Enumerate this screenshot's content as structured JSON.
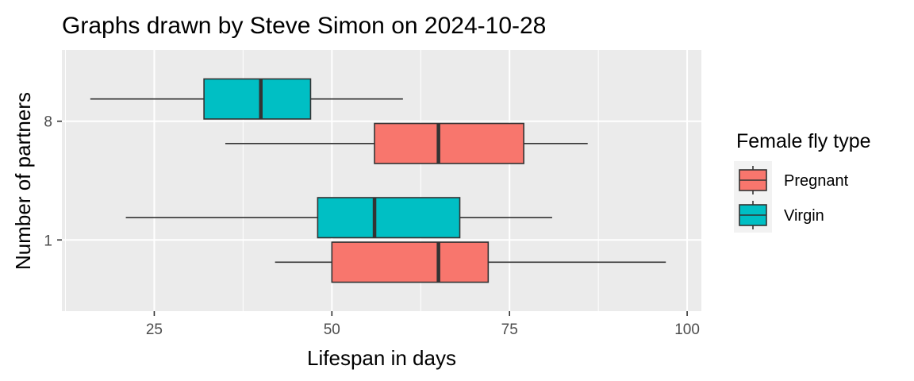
{
  "chart_data": {
    "type": "boxplot",
    "orientation": "horizontal",
    "title": "Graphs drawn by Steve Simon on 2024-10-28",
    "xlabel": "Lifespan in days",
    "ylabel": "Number of partners",
    "xlim": [
      12,
      102
    ],
    "x_ticks": [
      25,
      50,
      75,
      100
    ],
    "categories": [
      "1",
      "8"
    ],
    "legend": {
      "title": "Female fly type",
      "position": "right",
      "entries": [
        "Pregnant",
        "Virgin"
      ]
    },
    "grid": true,
    "series": [
      {
        "name": "Pregnant",
        "color": "#F8766D",
        "boxes": [
          {
            "category": "1",
            "min": 42,
            "q1": 50,
            "median": 65,
            "q3": 72,
            "max": 97
          },
          {
            "category": "8",
            "min": 35,
            "q1": 56,
            "median": 65,
            "q3": 77,
            "max": 86
          }
        ]
      },
      {
        "name": "Virgin",
        "color": "#00BFC4",
        "boxes": [
          {
            "category": "1",
            "min": 21,
            "q1": 48,
            "median": 56,
            "q3": 68,
            "max": 81
          },
          {
            "category": "8",
            "min": 16,
            "q1": 32,
            "median": 40,
            "q3": 47,
            "max": 60
          }
        ]
      }
    ]
  }
}
